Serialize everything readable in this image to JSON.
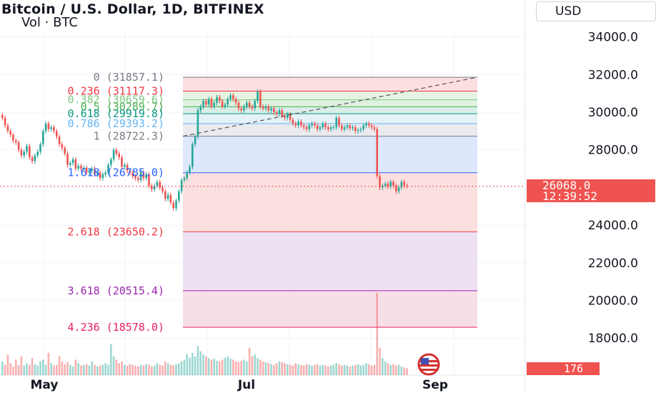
{
  "header": {
    "title": "Bitcoin / U.S. Dollar, 1D, BITFINEX",
    "subtitle": "Vol · BTC",
    "currency": "USD"
  },
  "price_axis": {
    "labels": [
      "34000.0",
      "32000.0",
      "30000.0",
      "28000.0",
      "26000.0",
      "24000.0",
      "22000.0",
      "20000.0",
      "18000.0"
    ],
    "last_price": "26068.0",
    "countdown": "12:39:52",
    "volume": "176"
  },
  "time_axis": {
    "labels": [
      "May",
      "Jul",
      "Sep"
    ]
  },
  "fib_levels": [
    {
      "ratio": "0",
      "value": "31857.1",
      "color": "#787b86"
    },
    {
      "ratio": "0.236",
      "value": "31117.3",
      "color": "#f23645"
    },
    {
      "ratio": "0.382",
      "value": "30659.6",
      "color": "#81c784"
    },
    {
      "ratio": "0.5",
      "value": "30289.7",
      "color": "#4caf50"
    },
    {
      "ratio": "0.618",
      "value": "29919.8",
      "color": "#089981"
    },
    {
      "ratio": "0.786",
      "value": "29393.2",
      "color": "#64b5f6"
    },
    {
      "ratio": "1",
      "value": "28722.3",
      "color": "#787b86"
    },
    {
      "ratio": "1.618",
      "value": "26785.0",
      "color": "#2962ff"
    },
    {
      "ratio": "2.618",
      "value": "23650.2",
      "color": "#f23645"
    },
    {
      "ratio": "3.618",
      "value": "20515.4",
      "color": "#9c27b0"
    },
    {
      "ratio": "4.236",
      "value": "18578.0",
      "color": "#e91e63"
    }
  ],
  "chart_data": {
    "type": "candlestick",
    "title": "Bitcoin / U.S. Dollar, 1D, BITFINEX",
    "xlabel": "",
    "ylabel": "",
    "x_ticks": [
      "May",
      "Jul",
      "Sep"
    ],
    "y_ticks": [
      18000,
      20000,
      22000,
      24000,
      26000,
      28000,
      30000,
      32000,
      34000
    ],
    "ylim": [
      17000,
      34800
    ],
    "last_close": 26068.0,
    "fib_extension_levels": [
      31857.1,
      31117.3,
      30659.6,
      30289.7,
      29919.8,
      29393.2,
      28722.3,
      26785.0,
      23650.2,
      20515.4,
      18578.0
    ],
    "series": [
      {
        "name": "close",
        "values": [
          29700,
          29300,
          29000,
          28800,
          28500,
          28400,
          28000,
          27700,
          27900,
          28200,
          27600,
          27400,
          27700,
          27900,
          28300,
          29000,
          29400,
          29100,
          29200,
          29000,
          28700,
          28300,
          28100,
          27800,
          27200,
          27300,
          27500,
          27000,
          27150,
          27000,
          27050,
          26800,
          26900,
          27000,
          26700,
          26800,
          26500,
          26700,
          26800,
          27200,
          27500,
          28000,
          27800,
          27600,
          27100,
          27200,
          26900,
          26800,
          26600,
          26500,
          26400,
          26800,
          26500,
          26700,
          26100,
          25900,
          26100,
          26300,
          26000,
          25800,
          25400,
          25600,
          25200,
          24900,
          25300,
          25800,
          26400,
          26500,
          26800,
          27100,
          28300,
          28700,
          30100,
          30300,
          30600,
          30400,
          30700,
          30300,
          30500,
          30800,
          30600,
          30300,
          30400,
          30700,
          30900,
          30700,
          30500,
          30200,
          30100,
          30300,
          30500,
          30300,
          30200,
          30600,
          31100,
          30300,
          30200,
          30300,
          30100,
          30200,
          30000,
          29900,
          30100,
          29800,
          29700,
          29900,
          29600,
          29400,
          29300,
          29500,
          29300,
          29200,
          29100,
          29300,
          29400,
          29300,
          29100,
          29200,
          29400,
          29200,
          29100,
          29200,
          29200,
          29700,
          29300,
          29100,
          29200,
          29300,
          29150,
          29200,
          29000,
          29050,
          29100,
          29300,
          29400,
          29300,
          29200,
          29100,
          26600,
          26000,
          26100,
          26200,
          26050,
          26300,
          26100,
          25800,
          26000,
          26300,
          26100,
          26068
        ]
      },
      {
        "name": "volume",
        "values": [
          40,
          30,
          60,
          35,
          25,
          45,
          30,
          55,
          28,
          35,
          30,
          50,
          32,
          28,
          40,
          45,
          30,
          65,
          35,
          28,
          30,
          55,
          40,
          32,
          38,
          30,
          25,
          45,
          35,
          28,
          30,
          32,
          28,
          40,
          30,
          25,
          28,
          30,
          35,
          30,
          90,
          55,
          45,
          35,
          40,
          30,
          28,
          32,
          30,
          28,
          25,
          30,
          28,
          32,
          30,
          25,
          28,
          35,
          30,
          28,
          40,
          35,
          30,
          28,
          32,
          35,
          40,
          45,
          60,
          50,
          65,
          55,
          85,
          70,
          60,
          55,
          50,
          45,
          48,
          42,
          40,
          45,
          50,
          55,
          48,
          45,
          40,
          38,
          42,
          45,
          40,
          80,
          55,
          60,
          50,
          45,
          40,
          38,
          35,
          32,
          30,
          35,
          40,
          38,
          35,
          32,
          30,
          28,
          35,
          32,
          30,
          28,
          32,
          30,
          28,
          30,
          32,
          28,
          30,
          28,
          25,
          28,
          30,
          35,
          32,
          28,
          30,
          28,
          25,
          28,
          30,
          32,
          28,
          30,
          35,
          32,
          28,
          30,
          240,
          80,
          50,
          40,
          35,
          30,
          32,
          28,
          30,
          25,
          22,
          20
        ]
      }
    ]
  },
  "colors": {
    "up": "#26a69a",
    "down": "#ef5350",
    "grid": "#f0f3fa",
    "axis_text": "#131722",
    "price_line": "#ef5350"
  }
}
